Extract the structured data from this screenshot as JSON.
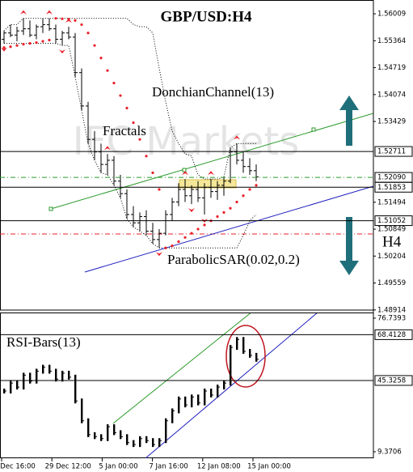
{
  "chart_data": [
    {
      "type": "candlestick",
      "title": "GBP/USD:H4",
      "watermark": "IFC Markets",
      "timeframe": "H4",
      "color": "#000000",
      "open": [
        1.554,
        1.5555,
        1.555,
        1.556,
        1.5565,
        1.555,
        1.557,
        1.5575,
        1.5565,
        1.554,
        1.5555,
        1.5545,
        1.546,
        1.538,
        1.53,
        1.527,
        1.524,
        1.525,
        1.52,
        1.517,
        1.512,
        1.51,
        1.5115,
        1.508,
        1.506,
        1.5075,
        1.512,
        1.515,
        1.518,
        1.5165,
        1.518,
        1.516,
        1.5185,
        1.5175,
        1.519,
        1.52,
        1.527,
        1.525,
        1.5235,
        1.5225
      ],
      "high": [
        1.556,
        1.5575,
        1.557,
        1.559,
        1.5585,
        1.5575,
        1.559,
        1.559,
        1.5575,
        1.556,
        1.557,
        1.5555,
        1.547,
        1.539,
        1.532,
        1.529,
        1.5265,
        1.526,
        1.5215,
        1.518,
        1.514,
        1.5125,
        1.513,
        1.51,
        1.5085,
        1.513,
        1.516,
        1.5195,
        1.5205,
        1.519,
        1.52,
        1.5195,
        1.5205,
        1.52,
        1.521,
        1.528,
        1.529,
        1.527,
        1.5255,
        1.524
      ],
      "low": [
        1.553,
        1.5545,
        1.5535,
        1.555,
        1.5545,
        1.554,
        1.5555,
        1.556,
        1.553,
        1.5525,
        1.554,
        1.545,
        1.537,
        1.529,
        1.525,
        1.522,
        1.5215,
        1.519,
        1.516,
        1.511,
        1.509,
        1.508,
        1.507,
        1.505,
        1.504,
        1.507,
        1.5105,
        1.514,
        1.515,
        1.5145,
        1.515,
        1.512,
        1.516,
        1.5155,
        1.5165,
        1.5195,
        1.524,
        1.522,
        1.5215,
        1.52
      ],
      "close": [
        1.5555,
        1.555,
        1.556,
        1.5565,
        1.555,
        1.557,
        1.5575,
        1.5565,
        1.554,
        1.5555,
        1.5545,
        1.546,
        1.538,
        1.53,
        1.527,
        1.524,
        1.525,
        1.52,
        1.517,
        1.512,
        1.51,
        1.5115,
        1.508,
        1.506,
        1.5075,
        1.512,
        1.515,
        1.518,
        1.5165,
        1.518,
        1.516,
        1.5185,
        1.5175,
        1.519,
        1.52,
        1.527,
        1.525,
        1.5235,
        1.5225,
        1.521
      ],
      "donchian": {
        "name": "DonchianChannel(13)",
        "color": "#000000",
        "upper": [
          1.556,
          1.5575,
          1.5575,
          1.559,
          1.559,
          1.559,
          1.559,
          1.559,
          1.559,
          1.559,
          1.559,
          1.559,
          1.559,
          1.559,
          1.559,
          1.559,
          1.559,
          1.559,
          1.559,
          1.559,
          1.5575,
          1.557,
          1.557,
          1.5555,
          1.547,
          1.539,
          1.532,
          1.529,
          1.5265,
          1.526,
          1.5215,
          1.5205,
          1.5205,
          1.5205,
          1.521,
          1.528,
          1.529,
          1.529,
          1.529,
          1.529
        ],
        "lower": [
          1.553,
          1.553,
          1.553,
          1.553,
          1.553,
          1.553,
          1.553,
          1.553,
          1.553,
          1.5525,
          1.5525,
          1.545,
          1.537,
          1.529,
          1.525,
          1.522,
          1.5215,
          1.519,
          1.516,
          1.511,
          1.509,
          1.508,
          1.507,
          1.505,
          1.504,
          1.504,
          1.504,
          1.504,
          1.504,
          1.504,
          1.504,
          1.504,
          1.504,
          1.504,
          1.504,
          1.504,
          1.504,
          1.507,
          1.5105,
          1.512
        ]
      },
      "sar": {
        "name": "ParabolicSAR(0.02,0.2)",
        "color": "#e8202a",
        "values": [
          1.552,
          1.5522,
          1.5525,
          1.5528,
          1.553,
          1.5532,
          1.5535,
          1.5538,
          1.559,
          1.5589,
          1.5588,
          1.5585,
          1.5575,
          1.5555,
          1.5525,
          1.5495,
          1.5465,
          1.5435,
          1.5405,
          1.5375,
          1.534,
          1.53,
          1.526,
          1.522,
          1.518,
          1.504,
          1.5045,
          1.5055,
          1.5065,
          1.5075,
          1.5085,
          1.5095,
          1.5105,
          1.5115,
          1.5125,
          1.5135,
          1.515,
          1.5165,
          1.518,
          1.519
        ]
      },
      "fractals": {
        "name": "Fractals",
        "color": "#e8202a",
        "up": [
          null,
          null,
          null,
          1.559,
          null,
          null,
          null,
          1.559,
          null,
          null,
          1.557,
          null,
          null,
          null,
          null,
          null,
          1.5265,
          null,
          null,
          null,
          null,
          null,
          null,
          null,
          null,
          null,
          null,
          null,
          1.5205,
          null,
          null,
          null,
          1.5205,
          null,
          null,
          null,
          1.529,
          null,
          null,
          null
        ],
        "down": [
          1.553,
          null,
          null,
          null,
          null,
          null,
          null,
          null,
          null,
          1.5525,
          null,
          null,
          null,
          null,
          null,
          null,
          null,
          null,
          null,
          null,
          null,
          null,
          null,
          null,
          1.504,
          null,
          null,
          null,
          null,
          1.5145,
          null,
          1.512,
          null,
          null,
          null,
          null,
          null,
          null,
          null,
          null
        ]
      },
      "ylim": [
        1.4891,
        1.5634
      ],
      "yticks": [
        1.56009,
        1.55364,
        1.54719,
        1.54074,
        1.53429,
        1.51494,
        1.50849,
        1.50204,
        1.49559,
        1.48914
      ],
      "levels": [
        1.52711,
        {
          "value": 1.5209,
          "label": "1.52090"
        },
        1.51853,
        1.51052
      ],
      "level_colors": [
        "#000000",
        "#2a9a2a",
        "#000000",
        "#000000"
      ],
      "xticks": [
        "Dec 16:00",
        "29 Dec 12:00",
        "5 Jan 00:00",
        "7 Jan 16:00",
        "12 Jan 08:00",
        "15 Jan 00:00"
      ]
    },
    {
      "type": "rsi-bars",
      "name": "RSI-Bars(13)",
      "color": "#000000",
      "values": [
        40,
        44,
        42,
        48,
        45,
        50,
        52,
        50,
        46,
        49,
        47,
        35,
        25,
        18,
        17,
        16,
        22,
        19,
        17,
        14,
        13,
        16,
        15,
        13,
        15,
        25,
        30,
        36,
        33,
        37,
        34,
        40,
        38,
        42,
        44,
        62,
        66,
        60,
        58,
        56
      ],
      "ylim": [
        9.3706,
        76.7393
      ],
      "yticks": [
        76.7393,
        9.3706
      ],
      "levels": [
        68.4128,
        45.3258
      ]
    }
  ]
}
